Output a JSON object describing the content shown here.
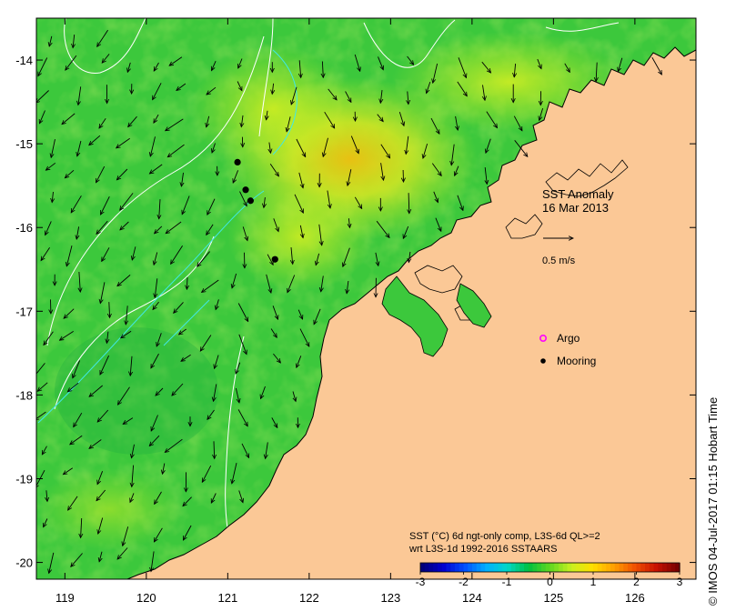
{
  "map": {
    "title_line1": "SST Anomaly",
    "title_line2": "16 Mar 2013",
    "scale_arrow_label": "0.5 m/s",
    "lon_ticks": [
      "119",
      "120",
      "121",
      "122",
      "123",
      "124",
      "125",
      "126"
    ],
    "lat_ticks": [
      "-14",
      "-15",
      "-16",
      "-17",
      "-18",
      "-19",
      "-20"
    ],
    "lon_range": [
      118.65,
      126.75
    ],
    "lat_range": [
      -20.2,
      -13.5
    ],
    "legend": {
      "argo_label": "Argo",
      "argo_color": "#ff00ff",
      "mooring_label": "Mooring",
      "mooring_color": "#000000"
    },
    "moorings": [
      {
        "lon": 121.12,
        "lat": -15.22
      },
      {
        "lon": 121.22,
        "lat": -15.55
      },
      {
        "lon": 121.28,
        "lat": -15.68
      },
      {
        "lon": 121.58,
        "lat": -16.38
      }
    ],
    "colorbar": {
      "caption_line1": "SST (°C) 6d ngt-only comp, L3S-6d QL>=2",
      "caption_line2": "wrt L3S-1d 1992-2016 SSTAARS",
      "ticks": [
        "-3",
        "-2",
        "-1",
        "0",
        "1",
        "2",
        "3"
      ],
      "range": [
        -3,
        3
      ],
      "colors": [
        "#00007a",
        "#0000d0",
        "#0050ff",
        "#00b0ff",
        "#00d8c8",
        "#00c040",
        "#60d820",
        "#c8f020",
        "#ffe000",
        "#ffa000",
        "#f05000",
        "#c81000",
        "#780000"
      ]
    },
    "colors": {
      "land": "#fbc896",
      "sea_base": "#3cc83c",
      "sea_warm": "#c8f028",
      "sea_warmer": "#f0d010",
      "coast": "#000000",
      "contour_white": "#ffffff",
      "contour_cyan": "#40e8e8"
    }
  },
  "credit": "© IMOS 04-Jul-2017 01:15 Hobart Time"
}
